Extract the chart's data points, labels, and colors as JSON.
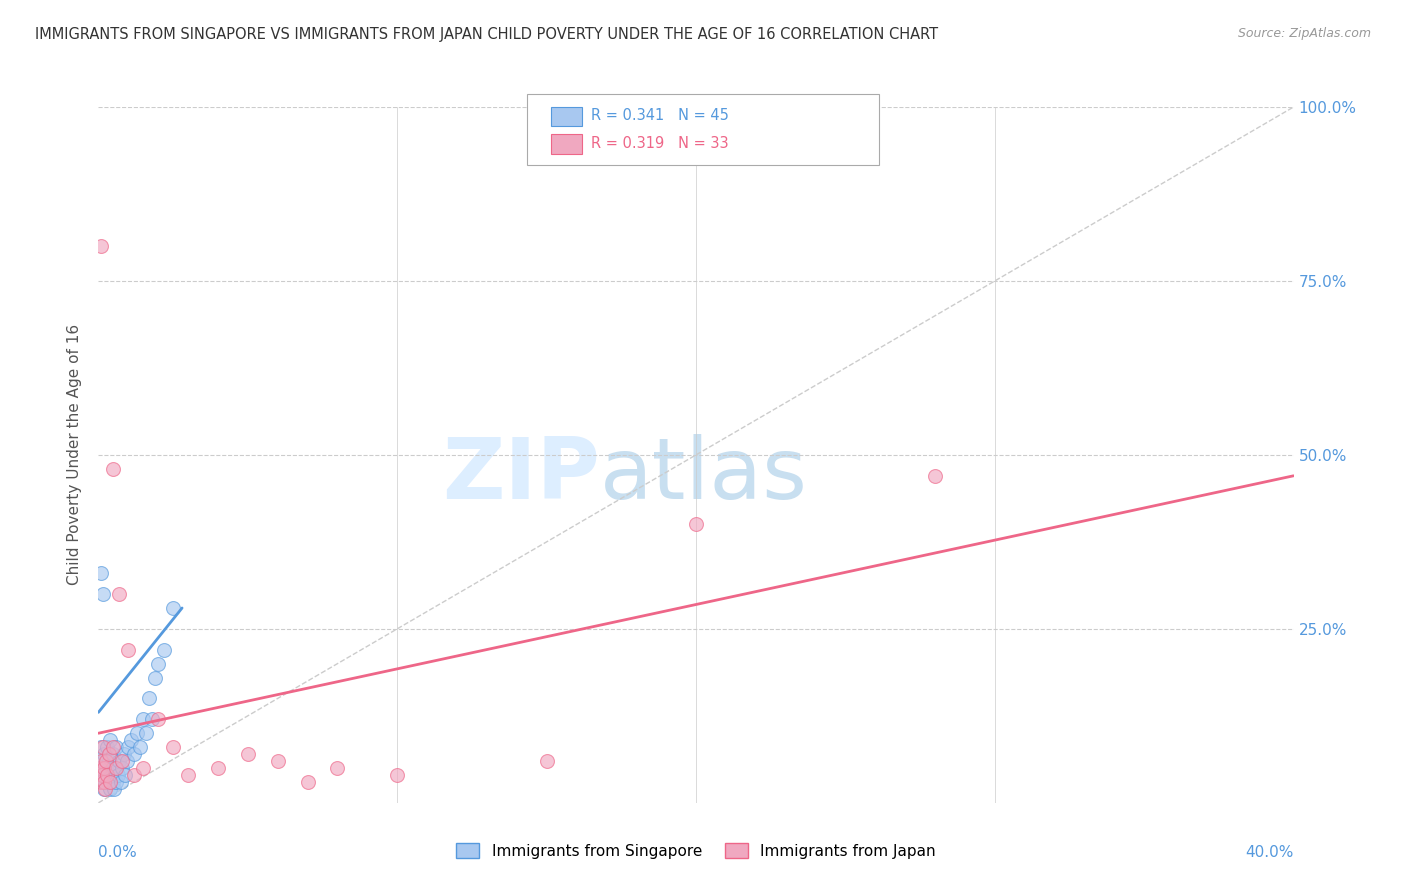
{
  "title": "IMMIGRANTS FROM SINGAPORE VS IMMIGRANTS FROM JAPAN CHILD POVERTY UNDER THE AGE OF 16 CORRELATION CHART",
  "source": "Source: ZipAtlas.com",
  "ylabel_label": "Child Poverty Under the Age of 16",
  "legend_singapore": "Immigrants from Singapore",
  "legend_japan": "Immigrants from Japan",
  "R_singapore": "0.341",
  "N_singapore": "45",
  "R_japan": "0.319",
  "N_japan": "33",
  "color_singapore": "#a8c8f0",
  "color_japan": "#f0a8c0",
  "color_line_singapore": "#5599dd",
  "color_line_japan": "#ee6688",
  "color_ref_line": "#cccccc",
  "watermark_zip": "ZIP",
  "watermark_atlas": "atlas",
  "watermark_color_zip": "#ddeeff",
  "watermark_color_atlas": "#c8dff0",
  "sg_x": [
    0.05,
    0.08,
    0.1,
    0.12,
    0.15,
    0.18,
    0.2,
    0.22,
    0.25,
    0.28,
    0.3,
    0.32,
    0.35,
    0.38,
    0.4,
    0.42,
    0.45,
    0.48,
    0.5,
    0.52,
    0.55,
    0.58,
    0.6,
    0.65,
    0.7,
    0.75,
    0.8,
    0.85,
    0.9,
    0.95,
    1.0,
    1.1,
    1.2,
    1.3,
    1.4,
    1.5,
    1.6,
    1.7,
    1.8,
    1.9,
    2.0,
    2.2,
    2.5,
    0.1,
    0.15
  ],
  "sg_y": [
    5.0,
    3.0,
    8.0,
    4.0,
    6.0,
    2.0,
    7.0,
    3.0,
    5.0,
    4.0,
    8.0,
    3.0,
    6.0,
    2.0,
    9.0,
    4.0,
    5.0,
    3.0,
    7.0,
    2.0,
    5.0,
    3.0,
    8.0,
    4.0,
    6.0,
    3.0,
    5.0,
    7.0,
    4.0,
    6.0,
    8.0,
    9.0,
    7.0,
    10.0,
    8.0,
    12.0,
    10.0,
    15.0,
    12.0,
    18.0,
    20.0,
    22.0,
    28.0,
    33.0,
    30.0
  ],
  "jp_x": [
    0.05,
    0.08,
    0.1,
    0.12,
    0.15,
    0.18,
    0.2,
    0.22,
    0.25,
    0.3,
    0.35,
    0.4,
    0.5,
    0.6,
    0.7,
    0.8,
    1.0,
    1.2,
    1.5,
    2.0,
    2.5,
    3.0,
    4.0,
    5.0,
    6.0,
    7.0,
    8.0,
    10.0,
    15.0,
    20.0,
    28.0,
    0.1,
    0.5
  ],
  "jp_y": [
    5.0,
    3.0,
    6.0,
    4.0,
    8.0,
    3.0,
    5.0,
    2.0,
    6.0,
    4.0,
    7.0,
    3.0,
    8.0,
    5.0,
    30.0,
    6.0,
    22.0,
    4.0,
    5.0,
    12.0,
    8.0,
    4.0,
    5.0,
    7.0,
    6.0,
    3.0,
    5.0,
    4.0,
    6.0,
    40.0,
    47.0,
    80.0,
    48.0
  ],
  "sg_line_x": [
    0.0,
    2.8
  ],
  "sg_line_y": [
    13.0,
    28.0
  ],
  "jp_line_x": [
    0.0,
    40.0
  ],
  "jp_line_y": [
    10.0,
    47.0
  ],
  "ref_line_x": [
    0.0,
    40.0
  ],
  "ref_line_y": [
    0.0,
    100.0
  ],
  "xlim": [
    0.0,
    40.0
  ],
  "ylim": [
    0.0,
    100.0
  ],
  "marker_size": 100
}
